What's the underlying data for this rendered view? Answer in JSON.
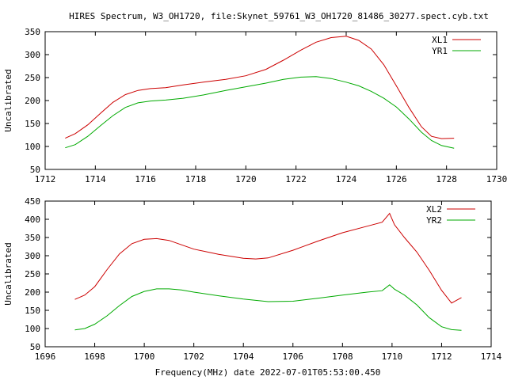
{
  "title": "HIRES Spectrum, W3_OH1720, file:Skynet_59761_W3_OH1720_81486_30277.spect.cyb.txt",
  "xlabel": "Frequency(MHz) date 2022-07-01T05:53:00.450",
  "colors": {
    "red": "#cc0000",
    "green": "#00aa00",
    "axis": "#000000"
  },
  "chart_data": [
    {
      "type": "line",
      "title": "HIRES Spectrum, W3_OH1720, file:Skynet_59761_W3_OH1720_81486_30277.spect.cyb.txt",
      "ylabel": "Uncalibrated",
      "xlim": [
        1712,
        1730
      ],
      "ylim": [
        50,
        350
      ],
      "xticks": [
        1712,
        1714,
        1716,
        1718,
        1720,
        1722,
        1724,
        1726,
        1728,
        1730
      ],
      "yticks": [
        50,
        100,
        150,
        200,
        250,
        300,
        350
      ],
      "legend": "top-right",
      "series": [
        {
          "name": "XL1",
          "color": "#cc0000",
          "x": [
            1712.8,
            1713.2,
            1713.7,
            1714.2,
            1714.7,
            1715.2,
            1715.7,
            1716.2,
            1716.8,
            1717.5,
            1718.3,
            1719.2,
            1720.0,
            1720.8,
            1721.5,
            1722.2,
            1722.8,
            1723.4,
            1724.0,
            1724.5,
            1725.0,
            1725.5,
            1726.0,
            1726.5,
            1727.0,
            1727.4,
            1727.8,
            1728.3
          ],
          "y": [
            118,
            128,
            147,
            172,
            196,
            213,
            222,
            226,
            228,
            234,
            240,
            246,
            254,
            268,
            288,
            310,
            327,
            337,
            340,
            331,
            312,
            278,
            232,
            185,
            143,
            122,
            117,
            118
          ]
        },
        {
          "name": "YR1",
          "color": "#00aa00",
          "x": [
            1712.8,
            1713.2,
            1713.7,
            1714.2,
            1714.7,
            1715.2,
            1715.7,
            1716.2,
            1716.8,
            1717.5,
            1718.3,
            1719.2,
            1720.0,
            1720.8,
            1721.5,
            1722.2,
            1722.8,
            1723.4,
            1724.0,
            1724.5,
            1725.0,
            1725.5,
            1726.0,
            1726.5,
            1727.0,
            1727.4,
            1727.8,
            1728.3
          ],
          "y": [
            97,
            104,
            122,
            145,
            167,
            185,
            195,
            199,
            201,
            205,
            212,
            222,
            230,
            238,
            246,
            251,
            252,
            248,
            240,
            232,
            220,
            205,
            186,
            160,
            131,
            113,
            102,
            96
          ]
        }
      ]
    },
    {
      "type": "line",
      "ylabel": "Uncalibrated",
      "xlim": [
        1696,
        1714
      ],
      "ylim": [
        50,
        450
      ],
      "xticks": [
        1696,
        1698,
        1700,
        1702,
        1704,
        1706,
        1708,
        1710,
        1712,
        1714
      ],
      "yticks": [
        50,
        100,
        150,
        200,
        250,
        300,
        350,
        400,
        450
      ],
      "legend": "top-right",
      "series": [
        {
          "name": "XL2",
          "color": "#cc0000",
          "x": [
            1697.2,
            1697.6,
            1698.0,
            1698.5,
            1699.0,
            1699.5,
            1700.0,
            1700.5,
            1701.0,
            1701.5,
            1702.0,
            1703.0,
            1704.0,
            1704.5,
            1705.0,
            1706.0,
            1707.0,
            1708.0,
            1709.0,
            1709.6,
            1709.9,
            1710.1,
            1710.5,
            1711.0,
            1711.5,
            1712.0,
            1712.4,
            1712.8
          ],
          "y": [
            180,
            192,
            215,
            262,
            305,
            333,
            345,
            347,
            342,
            330,
            318,
            304,
            293,
            291,
            294,
            315,
            340,
            363,
            381,
            392,
            416,
            385,
            350,
            310,
            260,
            205,
            170,
            185
          ]
        },
        {
          "name": "YR2",
          "color": "#00aa00",
          "x": [
            1697.2,
            1697.6,
            1698.0,
            1698.5,
            1699.0,
            1699.5,
            1700.0,
            1700.5,
            1701.0,
            1701.5,
            1702.0,
            1703.0,
            1704.0,
            1705.0,
            1706.0,
            1707.0,
            1708.0,
            1709.0,
            1709.6,
            1709.9,
            1710.1,
            1710.5,
            1711.0,
            1711.5,
            1712.0,
            1712.4,
            1712.8
          ],
          "y": [
            96,
            100,
            112,
            135,
            163,
            188,
            202,
            209,
            209,
            206,
            200,
            190,
            181,
            174,
            175,
            183,
            192,
            200,
            204,
            220,
            208,
            192,
            165,
            130,
            105,
            97,
            95
          ]
        }
      ]
    }
  ]
}
